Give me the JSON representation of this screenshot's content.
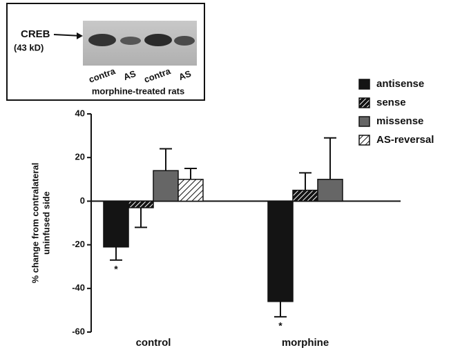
{
  "chart_data": {
    "type": "bar",
    "ylabel": [
      "% change from contralateral",
      "uninfused side"
    ],
    "categories": [
      "control",
      "morphine"
    ],
    "series": [
      {
        "name": "antisense",
        "color": "#141414",
        "hatch": false,
        "values": [
          -21,
          -46
        ],
        "errors": [
          6,
          7
        ]
      },
      {
        "name": "sense",
        "color": "#141414",
        "hatch": true,
        "values": [
          -3,
          5
        ],
        "errors": [
          9,
          8
        ]
      },
      {
        "name": "missense",
        "color": "#666666",
        "hatch": false,
        "values": [
          14,
          10
        ],
        "errors": [
          10,
          19
        ]
      },
      {
        "name": "AS-reversal",
        "color": "#ffffff",
        "hatch": true,
        "values": [
          10,
          null
        ],
        "errors": [
          5,
          null
        ]
      }
    ],
    "annotations": [
      "*",
      "*"
    ],
    "ylim": [
      -60,
      40
    ],
    "yticks": [
      -60,
      -40,
      -20,
      0,
      20,
      40
    ],
    "inset": {
      "label": "CREB",
      "sublabel": "(43 kD)",
      "lanes": [
        "contra",
        "AS",
        "contra",
        "AS"
      ],
      "caption": "morphine-treated rats"
    }
  }
}
